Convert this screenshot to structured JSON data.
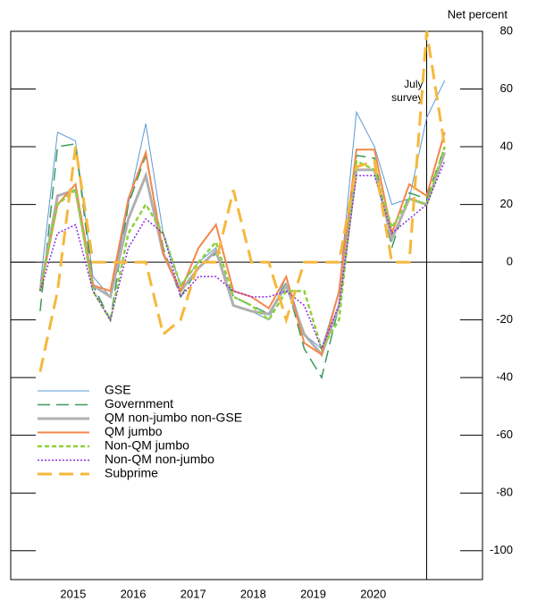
{
  "chart_data": {
    "type": "line",
    "y_axis_label": "Net percent",
    "xlim": [
      2014.46,
      2022.32
    ],
    "ylim": [
      -110,
      80
    ],
    "yticks": [
      80,
      60,
      40,
      20,
      0,
      -20,
      -40,
      -60,
      -80,
      -100
    ],
    "xticks": [
      {
        "value": 2015.5,
        "label": "2015"
      },
      {
        "value": 2016.5,
        "label": "2016"
      },
      {
        "value": 2017.5,
        "label": "2017"
      },
      {
        "value": 2018.5,
        "label": "2018"
      },
      {
        "value": 2019.5,
        "label": "2019"
      },
      {
        "value": 2020.5,
        "label": "2020"
      }
    ],
    "x": [
      2014.95,
      2015.24,
      2015.54,
      2015.83,
      2016.12,
      2016.42,
      2016.71,
      2017.0,
      2017.29,
      2017.59,
      2017.88,
      2018.17,
      2018.47,
      2018.76,
      2019.05,
      2019.35,
      2019.64,
      2019.93,
      2020.22,
      2020.52,
      2020.81,
      2021.1,
      2021.39,
      2021.69
    ],
    "annotation": {
      "x": 2021.39,
      "lines": [
        "July",
        "survey"
      ]
    },
    "legend": "lower left",
    "series": [
      {
        "name": "GSE",
        "color": "#5b9bd5",
        "dash": "",
        "width": 1,
        "values": [
          -8,
          45,
          42,
          -5,
          -12,
          20,
          48,
          10,
          -8,
          0,
          5,
          -15,
          -17,
          -20,
          -5,
          -25,
          -30,
          -10,
          52,
          40,
          20,
          22,
          50,
          63
        ]
      },
      {
        "name": "Government",
        "color": "#3a9a5b",
        "dash": "14 7",
        "width": 1.5,
        "values": [
          -17,
          40,
          41,
          -8,
          -20,
          20,
          37,
          5,
          -12,
          -2,
          3,
          -12,
          -15,
          -18,
          -7,
          -30,
          -40,
          -15,
          37,
          36,
          5,
          24,
          22,
          40
        ]
      },
      {
        "name": "QM non-jumbo non-GSE",
        "color": "#b0b0b0",
        "dash": "",
        "width": 3,
        "values": [
          -10,
          23,
          25,
          -8,
          -12,
          15,
          30,
          3,
          -10,
          -2,
          4,
          -15,
          -17,
          -18,
          -8,
          -25,
          -32,
          -15,
          32,
          32,
          8,
          22,
          20,
          38
        ]
      },
      {
        "name": "QM jumbo",
        "color": "#f4874b",
        "dash": "",
        "width": 2,
        "values": [
          -10,
          20,
          27,
          -8,
          -10,
          22,
          38,
          3,
          -10,
          5,
          13,
          -10,
          -12,
          -16,
          -5,
          -28,
          -32,
          -10,
          39,
          39,
          10,
          27,
          23,
          45
        ]
      },
      {
        "name": "Non-QM jumbo",
        "color": "#8fd13f",
        "dash": "5 3",
        "width": 2.5,
        "values": [
          -10,
          20,
          25,
          -10,
          -20,
          10,
          20,
          10,
          -8,
          0,
          7,
          -12,
          -15,
          -20,
          -10,
          -10,
          -30,
          -20,
          35,
          32,
          12,
          22,
          20,
          40
        ]
      },
      {
        "name": "Non-QM non-jumbo",
        "color": "#8a2be2",
        "dash": "2 2",
        "width": 1.5,
        "values": [
          -10,
          10,
          13,
          -10,
          -20,
          5,
          15,
          10,
          -12,
          -5,
          -5,
          -10,
          -12,
          -12,
          -10,
          -15,
          -30,
          -15,
          30,
          30,
          10,
          15,
          20,
          35
        ]
      },
      {
        "name": "Subprime",
        "color": "#f5b83c",
        "dash": "16 8",
        "width": 3,
        "values": [
          -38,
          -10,
          40,
          0,
          0,
          0,
          0,
          -25,
          -20,
          0,
          0,
          25,
          0,
          0,
          -20,
          0,
          0,
          0,
          33,
          35,
          0,
          0,
          80,
          40
        ]
      }
    ]
  }
}
